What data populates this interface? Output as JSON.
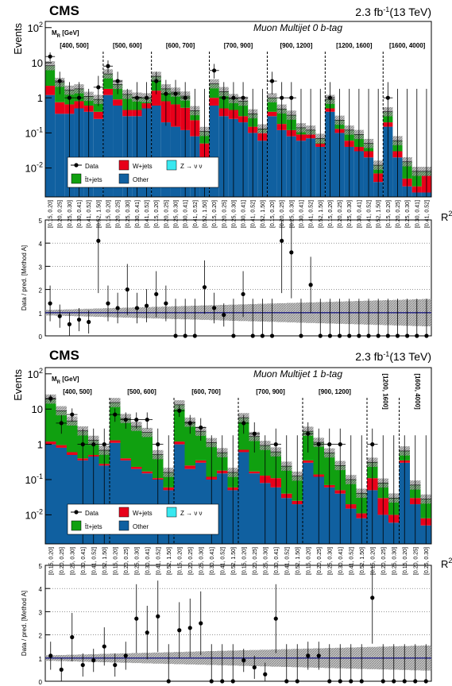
{
  "chart_data": [
    {
      "type": "bar",
      "cms_label": "CMS",
      "lumi_label": "2.3 fb",
      "lumi_sup": "-1",
      "lumi_energy": "(13 TeV)",
      "title": "Muon Multijet 0 b-tag",
      "ylabel": "Events",
      "xlabel_main": "R",
      "xlabel_sup": "2",
      "mr_label_main": "M",
      "mr_label_sub": "R",
      "mr_label_unit": "[GeV]",
      "ratio_ylabel": "Data / pred. [Method A]",
      "log_scale": true,
      "ylim": [
        0.0015,
        150
      ],
      "yticks": [
        {
          "v": 0.01,
          "m": "10",
          "e": "-2"
        },
        {
          "v": 0.1,
          "m": "10",
          "e": "-1"
        },
        {
          "v": 1,
          "m": "1",
          "e": ""
        },
        {
          "v": 10,
          "m": "10",
          "e": ""
        },
        {
          "v": 100,
          "m": "10",
          "e": "2"
        }
      ],
      "ratio_ylim": [
        0,
        5
      ],
      "ratio_yticks": [
        "0",
        "1",
        "2",
        "3",
        "4",
        "5"
      ],
      "groups": [
        {
          "label": "[400, 500]",
          "bins": [
            "[0.15, 0.20]",
            "[0.20, 0.25]",
            "[0.25, 0.30]",
            "[0.30, 0.41]",
            "[0.41, 0.52]",
            "[0.52, 1.50]"
          ]
        },
        {
          "label": "[500, 600]",
          "bins": [
            "[0.15, 0.20]",
            "[0.20, 0.25]",
            "[0.25, 0.30]",
            "[0.30, 0.41]",
            "[0.41, 0.52]"
          ]
        },
        {
          "label": "[600, 700]",
          "bins": [
            "[0.15, 0.20]",
            "[0.20, 0.25]",
            "[0.25, 0.30]",
            "[0.30, 0.41]",
            "[0.41, 0.52]",
            "[0.52, 1.50]"
          ]
        },
        {
          "label": "[700, 900]",
          "bins": [
            "[0.15, 0.20]",
            "[0.20, 0.25]",
            "[0.25, 0.30]",
            "[0.30, 0.41]",
            "[0.41, 0.52]",
            "[0.52, 1.50]"
          ]
        },
        {
          "label": "[900, 1200]",
          "bins": [
            "[0.15, 0.20]",
            "[0.20, 0.25]",
            "[0.25, 0.30]",
            "[0.30, 0.41]",
            "[0.41, 0.52]",
            "[0.52, 1.50]"
          ]
        },
        {
          "label": "[1200, 1600]",
          "bins": [
            "[0.15, 0.20]",
            "[0.20, 0.25]",
            "[0.25, 0.30]",
            "[0.30, 0.41]",
            "[0.41, 0.52]",
            "[0.52, 1.50]"
          ]
        },
        {
          "label": "[1600, 4000]",
          "bins": [
            "[0.15, 0.20]",
            "[0.20, 0.25]",
            "[0.25, 0.30]",
            "[0.30, 0.41]",
            "[0.41, 0.52]"
          ]
        }
      ],
      "legend": {
        "data": "Data",
        "wjets": "W+jets",
        "znn": "Z → ν ν",
        "ttbar": "t̄t+jets",
        "other": "Other"
      },
      "colors": {
        "wjets": "#e8001a",
        "znn": "#38e8f0",
        "ttbar": "#10a010",
        "other": "#1060a0",
        "unc": "#808080",
        "ratio_line": "#1a1a80"
      },
      "series": [
        {
          "name": "Other",
          "values": [
            1.2,
            0.35,
            0.35,
            0.5,
            0.4,
            0.25,
            1.2,
            0.6,
            0.3,
            0.3,
            0.5,
            0.6,
            0.2,
            0.15,
            0.12,
            0.08,
            0.02,
            0.6,
            0.3,
            0.25,
            0.2,
            0.1,
            0.06,
            0.3,
            0.12,
            0.08,
            0.06,
            0.07,
            0.04,
            0.4,
            0.1,
            0.04,
            0.03,
            0.02,
            0.004,
            0.15,
            0.02,
            0.003,
            0.002,
            0.002
          ]
        },
        {
          "name": "W+jets",
          "values": [
            1.0,
            0.4,
            0.3,
            0.3,
            0.2,
            0.15,
            0.6,
            0.3,
            0.15,
            0.15,
            0.2,
            1.0,
            0.6,
            0.5,
            0.4,
            0.15,
            0.03,
            0.4,
            0.2,
            0.2,
            0.1,
            0.05,
            0.04,
            0.1,
            0.06,
            0.04,
            0.03,
            0.02,
            0.01,
            0.1,
            0.03,
            0.02,
            0.01,
            0.01,
            0.003,
            0.05,
            0.01,
            0.002,
            0.001,
            0.004
          ]
        },
        {
          "name": "t̄t+jets",
          "values": [
            6.0,
            2.0,
            1.0,
            1.0,
            0.5,
            0.5,
            3.0,
            1.5,
            0.8,
            0.6,
            0.3,
            2.5,
            1.0,
            0.8,
            0.6,
            0.2,
            0.06,
            1.5,
            1.0,
            0.5,
            0.5,
            0.2,
            0.03,
            0.6,
            0.3,
            0.2,
            0.05,
            0.03,
            0.02,
            0.4,
            0.1,
            0.06,
            0.05,
            0.02,
            0.005,
            0.2,
            0.03,
            0.01,
            0.005,
            0.002
          ]
        }
      ],
      "data": [
        15,
        3,
        1,
        1,
        null,
        2,
        8,
        3,
        null,
        1,
        1,
        3,
        1.3,
        1.3,
        1,
        null,
        null,
        6,
        1,
        1,
        1,
        null,
        null,
        3,
        1,
        1,
        null,
        null,
        null,
        1,
        null,
        null,
        null,
        null,
        null,
        1,
        null,
        null,
        null,
        null
      ],
      "ratio": [
        1.4,
        0.85,
        0.5,
        0.7,
        0.6,
        4.1,
        1.4,
        1.2,
        2.0,
        1.2,
        1.3,
        1.8,
        1.4,
        0.0,
        0.0,
        0.0,
        2.1,
        1.2,
        0.9,
        0.0,
        1.8,
        0.0,
        0.0,
        0.0,
        4.1,
        3.6,
        0.0,
        2.2,
        0.0,
        0.0,
        0.0,
        0.0,
        0.0,
        0.0,
        0.0,
        0.0,
        0.0,
        0.0,
        0.0,
        0.0
      ]
    },
    {
      "type": "bar",
      "cms_label": "CMS",
      "lumi_label": "2.3 fb",
      "lumi_sup": "-1",
      "lumi_energy": "(13 TeV)",
      "title": "Muon Multijet 1 b-tag",
      "ylabel": "Events",
      "xlabel_main": "R",
      "xlabel_sup": "2",
      "mr_label_main": "M",
      "mr_label_sub": "R",
      "mr_label_unit": "[GeV]",
      "ratio_ylabel": "Data / pred. [Method A]",
      "log_scale": true,
      "ylim": [
        0.0015,
        150
      ],
      "yticks": [
        {
          "v": 0.01,
          "m": "10",
          "e": "-2"
        },
        {
          "v": 0.1,
          "m": "10",
          "e": "-1"
        },
        {
          "v": 1,
          "m": "1",
          "e": ""
        },
        {
          "v": 10,
          "m": "10",
          "e": ""
        },
        {
          "v": 100,
          "m": "10",
          "e": "2"
        }
      ],
      "ratio_ylim": [
        0,
        5
      ],
      "ratio_yticks": [
        "0",
        "1",
        "2",
        "3",
        "4",
        "5"
      ],
      "groups": [
        {
          "label": "[400, 500]",
          "bins": [
            "[0.15, 0.20]",
            "[0.20, 0.25]",
            "[0.25, 0.30]",
            "[0.30, 0.41]",
            "[0.41, 0.52]",
            "[0.52, 1.50]"
          ]
        },
        {
          "label": "[500, 600]",
          "bins": [
            "[0.15, 0.20]",
            "[0.20, 0.25]",
            "[0.25, 0.30]",
            "[0.30, 0.41]",
            "[0.41, 0.52]",
            "[0.52, 1.50]"
          ]
        },
        {
          "label": "[600, 700]",
          "bins": [
            "[0.15, 0.20]",
            "[0.20, 0.25]",
            "[0.25, 0.30]",
            "[0.30, 0.41]",
            "[0.41, 0.52]",
            "[0.52, 1.50]"
          ]
        },
        {
          "label": "[700, 900]",
          "bins": [
            "[0.15, 0.20]",
            "[0.20, 0.25]",
            "[0.25, 0.30]",
            "[0.30, 0.41]",
            "[0.41, 0.52]",
            "[0.52, 1.50]"
          ]
        },
        {
          "label": "[900, 1200]",
          "bins": [
            "[0.15, 0.20]",
            "[0.20, 0.25]",
            "[0.25, 0.30]",
            "[0.30, 0.41]",
            "[0.41, 0.52]",
            "[0.52, 1.50]"
          ]
        },
        {
          "label": "[1200, 1600]",
          "bins": [
            "[0.15, 0.20]",
            "[0.20, 0.25]",
            "[0.25, 0.30]"
          ],
          "vertical": true
        },
        {
          "label": "[1600, 4000]",
          "bins": [
            "[0.15, 0.20]",
            "[0.20, 0.25]",
            "[0.25, 0.30]"
          ],
          "vertical": true
        }
      ],
      "legend": {
        "data": "Data",
        "wjets": "W+jets",
        "znn": "Z → ν ν",
        "ttbar": "t̄t+jets",
        "other": "Other"
      },
      "colors": {
        "wjets": "#e8001a",
        "znn": "#38e8f0",
        "ttbar": "#10a010",
        "other": "#1060a0",
        "unc": "#808080",
        "ratio_line": "#1a1a80"
      },
      "series": [
        {
          "name": "Other",
          "values": [
            1.0,
            0.8,
            0.5,
            0.35,
            0.45,
            0.25,
            1.1,
            0.35,
            0.2,
            0.15,
            0.1,
            0.05,
            1.0,
            0.2,
            0.3,
            0.1,
            0.15,
            0.05,
            0.6,
            0.15,
            0.08,
            0.06,
            0.03,
            0.02,
            0.3,
            0.12,
            0.06,
            0.04,
            0.015,
            0.008,
            0.05,
            0.01,
            0.006,
            0.3,
            0.02,
            0.005
          ]
        },
        {
          "name": "W+jets",
          "values": [
            0.2,
            0.15,
            0.1,
            0.05,
            0.05,
            0.03,
            0.2,
            0.05,
            0.03,
            0.02,
            0.01,
            0.01,
            0.2,
            0.05,
            0.05,
            0.02,
            0.03,
            0.01,
            0.1,
            0.02,
            0.05,
            0.05,
            0.01,
            0.005,
            0.05,
            0.02,
            0.01,
            0.01,
            0.005,
            0.003,
            0.06,
            0.02,
            0.004,
            0.05,
            0.01,
            0.003
          ]
        },
        {
          "name": "t̄t+jets",
          "values": [
            18,
            8,
            4,
            2,
            0.8,
            0.4,
            14,
            5,
            3,
            2,
            0.4,
            0.1,
            12,
            4,
            2,
            1,
            0.4,
            0.1,
            5,
            1.5,
            0.8,
            0.5,
            0.2,
            0.1,
            2,
            1,
            0.5,
            0.2,
            0.08,
            0.03,
            0.2,
            0.05,
            0.02,
            0.3,
            0.04,
            0.02
          ]
        }
      ],
      "data": [
        20,
        4,
        7,
        1,
        1,
        1,
        7,
        5,
        5,
        5,
        1,
        null,
        9,
        4,
        3,
        null,
        null,
        null,
        4,
        2,
        null,
        1,
        null,
        null,
        2,
        1,
        1,
        1,
        null,
        null,
        1,
        null,
        null,
        null,
        null,
        null
      ],
      "ratio": [
        1.1,
        0.5,
        1.9,
        0.7,
        0.9,
        1.5,
        0.7,
        1.1,
        2.7,
        2.1,
        2.8,
        0.0,
        2.2,
        2.3,
        2.5,
        0.0,
        0.0,
        0.0,
        0.9,
        0.6,
        0.3,
        2.7,
        0.0,
        0.0,
        1.1,
        1.1,
        0.0,
        0.0,
        0.0,
        0.0,
        3.6,
        0.0,
        0.0,
        0.0,
        0.0,
        0.0
      ]
    }
  ]
}
